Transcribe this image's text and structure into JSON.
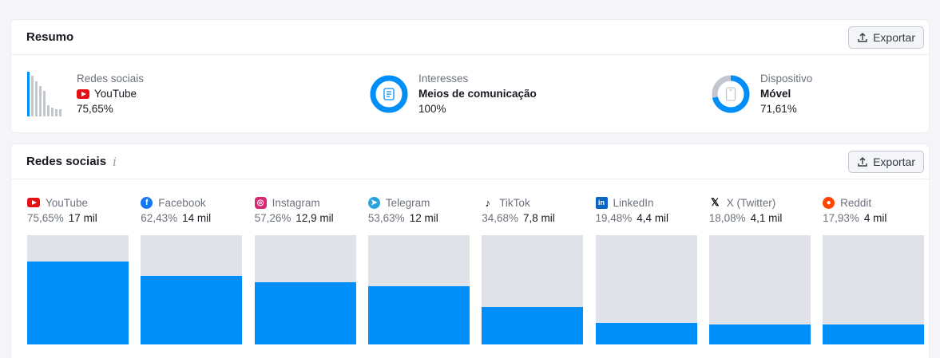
{
  "summary": {
    "title": "Resumo",
    "export_label": "Exportar",
    "social": {
      "label": "Redes sociais",
      "value": "YouTube",
      "pct": "75,65%"
    },
    "interests": {
      "label": "Interesses",
      "value": "Meios de comunicação",
      "pct": "100%",
      "fraction": 1.0
    },
    "device": {
      "label": "Dispositivo",
      "value": "Móvel",
      "pct": "71,61%",
      "fraction": 0.7161
    }
  },
  "social_section": {
    "title": "Redes sociais",
    "info_glyph": "i",
    "export_label": "Exportar",
    "items": [
      {
        "name": "YouTube",
        "pct": "75,65%",
        "count": "17 mil",
        "value": 0.7565,
        "icon": "youtube-icon",
        "color": "#e50f14"
      },
      {
        "name": "Facebook",
        "pct": "62,43%",
        "count": "14 mil",
        "value": 0.6243,
        "icon": "facebook-icon",
        "color": "#1877f2"
      },
      {
        "name": "Instagram",
        "pct": "57,26%",
        "count": "12,9 mil",
        "value": 0.5726,
        "icon": "instagram-icon",
        "color": "#d62976"
      },
      {
        "name": "Telegram",
        "pct": "53,63%",
        "count": "12 mil",
        "value": 0.5363,
        "icon": "telegram-icon",
        "color": "#2aa3df"
      },
      {
        "name": "TikTok",
        "pct": "34,68%",
        "count": "7,8 mil",
        "value": 0.3468,
        "icon": "tiktok-icon",
        "color": "#000000"
      },
      {
        "name": "LinkedIn",
        "pct": "19,48%",
        "count": "4,4 mil",
        "value": 0.1948,
        "icon": "linkedin-icon",
        "color": "#0a66c2"
      },
      {
        "name": "X (Twitter)",
        "pct": "18,08%",
        "count": "4,1 mil",
        "value": 0.1808,
        "icon": "x-twitter-icon",
        "color": "#000000"
      },
      {
        "name": "Reddit",
        "pct": "17,93%",
        "count": "4 mil",
        "value": 0.1793,
        "icon": "reddit-icon",
        "color": "#ff4500"
      }
    ]
  },
  "colors": {
    "accent": "#008ff8",
    "track": "#e0e2e9",
    "device_rest": "#c2c7cf"
  }
}
